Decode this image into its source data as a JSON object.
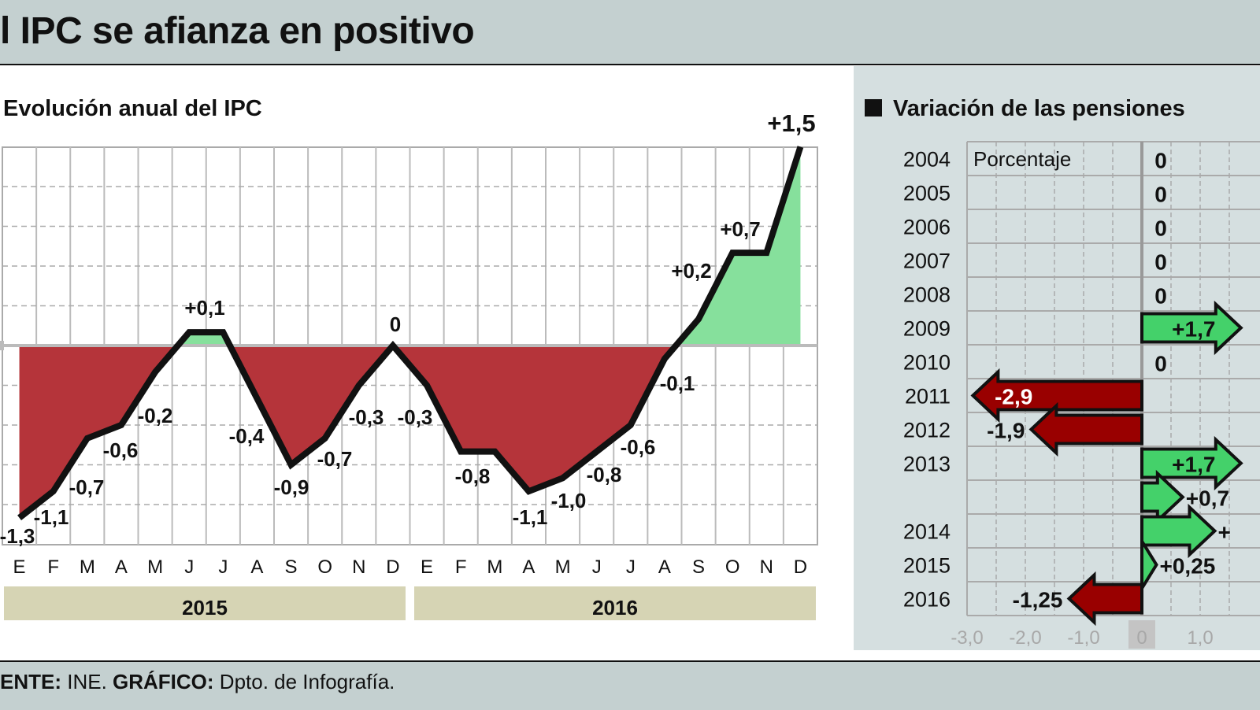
{
  "header": {
    "title": "l IPC se afianza en positivo"
  },
  "footer": {
    "source_label": "ENTE:",
    "source": " INE. ",
    "graphic_label": "GRÁFICO:",
    "graphic": " Dpto. de Infografía."
  },
  "colors": {
    "negative_fill": "#b5343a",
    "positive_fill": "#86e09c",
    "line": "#111111",
    "arrow_negative": "#990000",
    "arrow_positive": "#44d16a",
    "year_bar": "#d6d4b4",
    "panel_bg": "#d5dfe0"
  },
  "chart_data": [
    {
      "type": "area",
      "title": "Evolución anual del IPC",
      "months": [
        "E",
        "F",
        "M",
        "A",
        "M",
        "J",
        "J",
        "A",
        "S",
        "O",
        "N",
        "D",
        "E",
        "F",
        "M",
        "A",
        "M",
        "J",
        "J",
        "A",
        "S",
        "O",
        "N",
        "D"
      ],
      "years": [
        "2015",
        "2016"
      ],
      "values": [
        -1.3,
        -1.1,
        -0.7,
        -0.6,
        -0.2,
        0.1,
        0.1,
        -0.4,
        -0.9,
        -0.7,
        -0.3,
        0,
        -0.3,
        -0.8,
        -0.8,
        -1.1,
        -1.0,
        -0.8,
        -0.6,
        -0.1,
        0.2,
        0.7,
        0.7,
        1.5
      ],
      "labels": [
        "-1,3",
        "-1,1",
        "-0,7",
        "-0,6",
        "-0,2",
        "+0,1",
        null,
        "-0,4",
        "-0,9",
        "-0,7",
        "-0,3",
        "0",
        "-0,3",
        "-0,8",
        null,
        "-1,1",
        "-1,0",
        "-0,8",
        "-0,6",
        "-0,1",
        "+0,2",
        "+0,7",
        null,
        "+1,5"
      ],
      "ylim": [
        -1.5,
        1.5
      ],
      "grid": true
    },
    {
      "type": "bar",
      "title": "Variación de las pensiones",
      "unit_label": "Porcentaje",
      "orientation": "horizontal",
      "categories": [
        "2004",
        "2005",
        "2006",
        "2007",
        "2008",
        "2009",
        "2010",
        "2011",
        "2012",
        "2013",
        "",
        "2014",
        "2015",
        "2016"
      ],
      "values": [
        0,
        0,
        0,
        0,
        0,
        1.7,
        0,
        -2.9,
        -1.9,
        1.7,
        0.7,
        1.25,
        0.25,
        -1.25
      ],
      "labels": [
        "0",
        "0",
        "0",
        "0",
        "0",
        "+1,7",
        "0",
        "-2,9",
        "-1,9",
        "+1,7",
        "+0,7",
        "+",
        "+0,25",
        "-1,25"
      ],
      "x_ticks": [
        "-3,0",
        "-2,0",
        "-1,0",
        "0",
        "1,0"
      ],
      "xlim": [
        -3,
        1.5
      ],
      "grid": true
    }
  ]
}
